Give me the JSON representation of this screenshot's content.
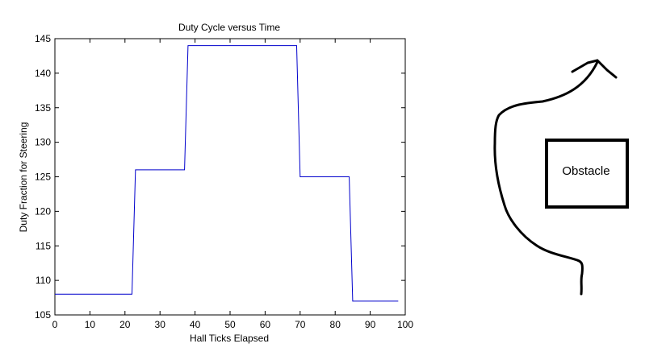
{
  "chart_data": {
    "type": "line",
    "title": "Duty Cycle versus Time",
    "xlabel": "Hall Ticks Elapsed",
    "ylabel": "Duty Fraction for Steering",
    "xlim": [
      0,
      100
    ],
    "ylim": [
      105,
      145
    ],
    "xticks": [
      0,
      10,
      20,
      30,
      40,
      50,
      60,
      70,
      80,
      90,
      100
    ],
    "yticks": [
      105,
      110,
      115,
      120,
      125,
      130,
      135,
      140,
      145
    ],
    "grid": false,
    "series": [
      {
        "color": "#0000cc",
        "x": [
          0,
          22,
          23,
          37,
          38,
          69,
          70,
          84,
          85,
          98
        ],
        "y": [
          108,
          108,
          126,
          126,
          144,
          144,
          125,
          125,
          107,
          107
        ]
      }
    ]
  },
  "sketch": {
    "obstacle_label": "Obstacle",
    "path_color": "#000000",
    "arrow": "curved-path-arrow"
  }
}
